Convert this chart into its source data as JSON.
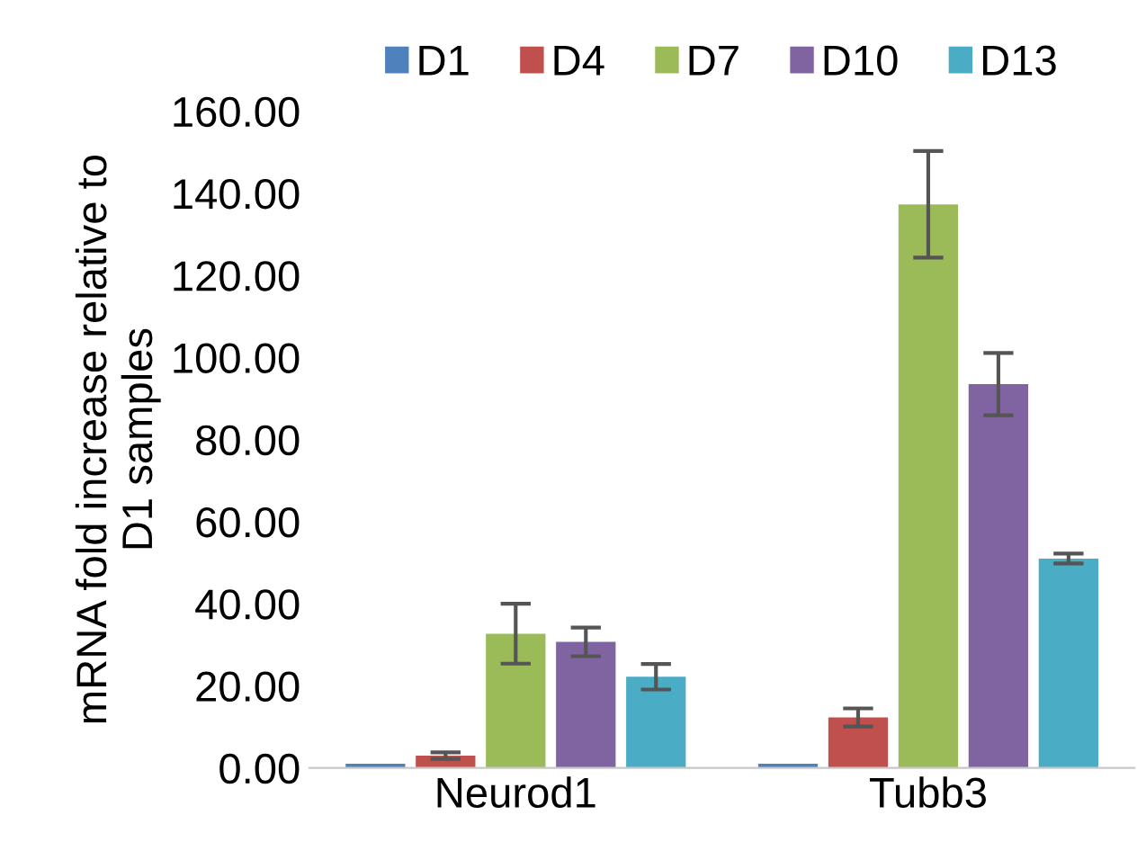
{
  "chart_data": {
    "type": "bar",
    "ylabel": "mRNA fold increase relative to\nD1 samples",
    "categories": [
      "Neurod1",
      "Tubb3"
    ],
    "ylim": [
      0,
      160
    ],
    "yticks": [
      {
        "value": 0,
        "label": "0.00"
      },
      {
        "value": 20,
        "label": "20.00"
      },
      {
        "value": 40,
        "label": "40.00"
      },
      {
        "value": 60,
        "label": "60.00"
      },
      {
        "value": 80,
        "label": "80.00"
      },
      {
        "value": 100,
        "label": "100.00"
      },
      {
        "value": 120,
        "label": "120.00"
      },
      {
        "value": 140,
        "label": "140.00"
      },
      {
        "value": 160,
        "label": "160.00"
      }
    ],
    "legend": "top",
    "grid": false,
    "series": [
      {
        "name": "D1",
        "color": "#4f81bd",
        "values": [
          1.0,
          1.0
        ],
        "errors": [
          null,
          null
        ]
      },
      {
        "name": "D4",
        "color": "#c0504d",
        "values": [
          3.0,
          12.3
        ],
        "errors": [
          0.8,
          2.2
        ]
      },
      {
        "name": "D7",
        "color": "#9bbb59",
        "values": [
          32.7,
          137.3
        ],
        "errors": [
          7.3,
          13
        ]
      },
      {
        "name": "D10",
        "color": "#8064a2",
        "values": [
          30.7,
          93.5
        ],
        "errors": [
          3.5,
          7.6
        ]
      },
      {
        "name": "D13",
        "color": "#4bacc6",
        "values": [
          22.2,
          51.0
        ],
        "errors": [
          3.1,
          1.2
        ]
      }
    ]
  }
}
